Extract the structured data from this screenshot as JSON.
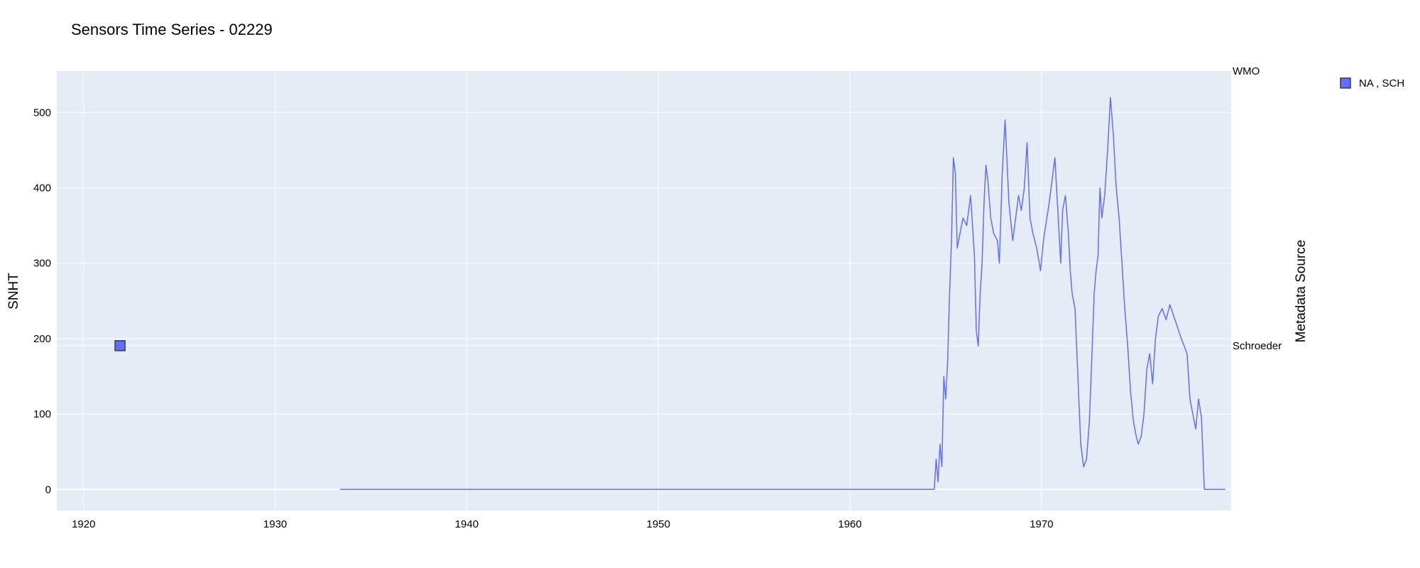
{
  "title": "Sensors Time Series - 02229",
  "colors": {
    "series": "#636efa",
    "plot_bg": "#e5ecf6",
    "grid": "#ffffff",
    "marker_border": "#2a3f5f"
  },
  "chart_data": {
    "type": "line",
    "title": "Sensors Time Series - 02229",
    "xlabel": "",
    "ylabel": "SNHT",
    "y2label": "Metadata Source",
    "xlim": [
      1918.6,
      1979.9
    ],
    "ylim": [
      -28,
      555
    ],
    "grid": true,
    "legend_position": "top-right",
    "x_ticks": [
      1920,
      1930,
      1940,
      1950,
      1960,
      1970
    ],
    "y_ticks": [
      0,
      100,
      200,
      300,
      400,
      500
    ],
    "y2_categories": [
      "WMO",
      "Schroeder"
    ],
    "series": [
      {
        "type": "line",
        "x": [
          1933.4,
          1964.4,
          1964.5,
          1964.6,
          1964.7,
          1964.8,
          1964.9,
          1965.0,
          1965.1,
          1965.2,
          1965.3,
          1965.4,
          1965.5,
          1965.6,
          1965.75,
          1965.9,
          1966.1,
          1966.3,
          1966.5,
          1966.6,
          1966.7,
          1966.8,
          1966.9,
          1967.0,
          1967.1,
          1967.2,
          1967.35,
          1967.5,
          1967.7,
          1967.8,
          1967.95,
          1968.1,
          1968.3,
          1968.5,
          1968.65,
          1968.8,
          1968.95,
          1969.1,
          1969.25,
          1969.4,
          1969.55,
          1969.75,
          1969.95,
          1970.1,
          1970.4,
          1970.7,
          1971.0,
          1971.1,
          1971.25,
          1971.4,
          1971.5,
          1971.6,
          1971.75,
          1971.9,
          1972.05,
          1972.2,
          1972.35,
          1972.5,
          1972.65,
          1972.75,
          1972.85,
          1972.95,
          1973.05,
          1973.15,
          1973.3,
          1973.45,
          1973.6,
          1973.75,
          1973.9,
          1974.05,
          1974.2,
          1974.35,
          1974.5,
          1974.65,
          1974.8,
          1974.95,
          1975.05,
          1975.2,
          1975.35,
          1975.5,
          1975.65,
          1975.8,
          1975.95,
          1976.1,
          1976.3,
          1976.5,
          1976.7,
          1976.9,
          1977.1,
          1977.3,
          1977.45,
          1977.6,
          1977.75,
          1977.9,
          1978.05,
          1978.2,
          1978.35,
          1978.5,
          1978.65,
          1978.8,
          1978.95,
          1979.1,
          1979.2,
          1979.3,
          1979.35,
          1979.4,
          1979.6
        ],
        "y": [
          0,
          0,
          40,
          10,
          60,
          30,
          150,
          120,
          170,
          260,
          330,
          440,
          420,
          320,
          340,
          360,
          350,
          390,
          310,
          210,
          190,
          260,
          300,
          380,
          430,
          410,
          360,
          340,
          330,
          300,
          420,
          490,
          380,
          330,
          360,
          390,
          370,
          400,
          460,
          360,
          340,
          320,
          290,
          330,
          380,
          440,
          300,
          370,
          390,
          340,
          290,
          260,
          240,
          150,
          60,
          30,
          40,
          90,
          190,
          260,
          290,
          310,
          400,
          360,
          390,
          450,
          520,
          470,
          400,
          360,
          300,
          240,
          190,
          130,
          90,
          70,
          60,
          70,
          100,
          160,
          180,
          140,
          200,
          230,
          240,
          225,
          245,
          230,
          215,
          200,
          190,
          180,
          120,
          100,
          80,
          120,
          95,
          0,
          0,
          0,
          0,
          0,
          0,
          0,
          0,
          0,
          0
        ]
      },
      {
        "type": "scatter",
        "name": "NA , SCH",
        "x": [
          1921.9
        ],
        "y": [
          "Schroeder"
        ],
        "axis": "y2"
      }
    ]
  }
}
